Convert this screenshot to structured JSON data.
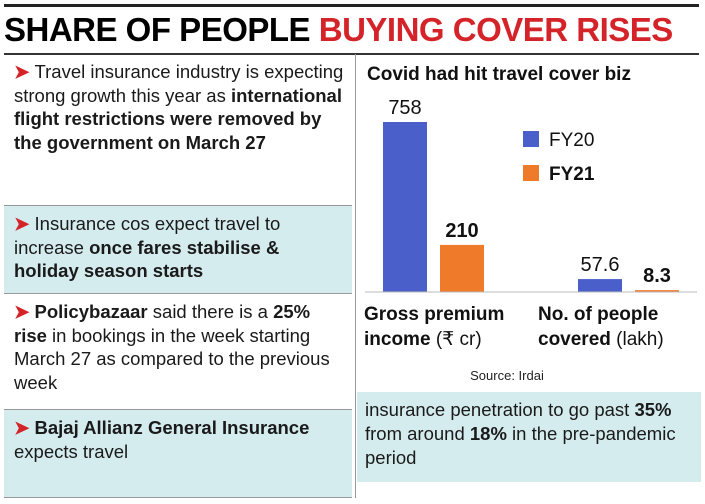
{
  "header": {
    "title_black": "SHARE OF PEOPLE",
    "title_red": "BUYING COVER RISES"
  },
  "left_panel": {
    "items": [
      {
        "segments": [
          {
            "text": "Travel insurance industry is expecting strong growth this year as ",
            "bold": false
          },
          {
            "text": "international flight restrictions were removed by the government on March 27",
            "bold": true
          }
        ]
      },
      {
        "segments": [
          {
            "text": "Insurance cos expect travel to increase ",
            "bold": false
          },
          {
            "text": "once fares stabilise & holiday season starts",
            "bold": true
          }
        ]
      },
      {
        "segments": [
          {
            "text": "Policybazaar",
            "bold": true
          },
          {
            "text": " said there is a ",
            "bold": false
          },
          {
            "text": "25% rise",
            "bold": true
          },
          {
            "text": " in bookings in the week starting March 27 as compared to the previous week",
            "bold": false
          }
        ]
      },
      {
        "segments": [
          {
            "text": "Bajaj Allianz General Insurance",
            "bold": true
          },
          {
            "text": " expects travel",
            "bold": false
          }
        ]
      }
    ]
  },
  "chart_data": {
    "type": "bar",
    "title": "Covid had hit travel cover biz",
    "categories": [
      "Gross premium income",
      "No. of people covered"
    ],
    "category_units": [
      "(₹ cr)",
      "(lakh)"
    ],
    "series": [
      {
        "name": "FY20",
        "color": "#4a5fc9",
        "values": [
          758,
          57.6
        ]
      },
      {
        "name": "FY21",
        "color": "#ef7a2a",
        "values": [
          210,
          8.3
        ]
      }
    ],
    "source": "Source: Irdai"
  },
  "footnote": {
    "segments": [
      {
        "text": "insurance penetration to go past ",
        "bold": false
      },
      {
        "text": "35%",
        "bold": true
      },
      {
        "text": " from around ",
        "bold": false
      },
      {
        "text": "18%",
        "bold": true
      },
      {
        "text": " in the pre-pandemic period",
        "bold": false
      }
    ]
  }
}
